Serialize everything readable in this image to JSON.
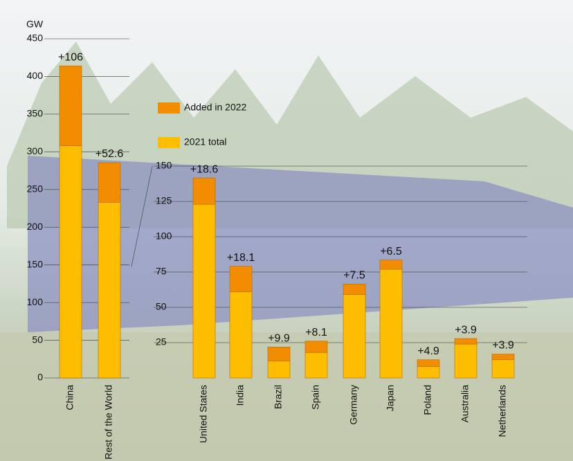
{
  "chart_data": [
    {
      "type": "bar",
      "y_label": "GW",
      "categories": [
        "China",
        "Rest of the World"
      ],
      "series": [
        {
          "name": "2021 total",
          "color": "#fdbd00",
          "values": [
            308,
            233
          ]
        },
        {
          "name": "Added in 2022",
          "color": "#f28c00",
          "values": [
            106,
            52.6
          ],
          "value_labels": [
            "+106",
            "+52.6"
          ]
        }
      ],
      "ylim": [
        0,
        450
      ],
      "yticks": [
        0,
        50,
        100,
        150,
        200,
        250,
        300,
        350,
        400,
        450
      ],
      "grid": true
    },
    {
      "type": "bar",
      "categories": [
        "United States",
        "India",
        "Brazil",
        "Spain",
        "Germany",
        "Japan",
        "Poland",
        "Australia",
        "Netherlands"
      ],
      "series": [
        {
          "color": "#fdbd00",
          "values": [
            123,
            61,
            12,
            18,
            59,
            77,
            8,
            24,
            13
          ]
        },
        {
          "color": "#f28c00",
          "values": [
            18.6,
            18.1,
            9.9,
            8.1,
            7.5,
            6.5,
            4.9,
            3.9,
            3.9
          ],
          "value_labels": [
            "+18.6",
            "+18.1",
            "+9.9",
            "+8.1",
            "+7.5",
            "+6.5",
            "+4.9",
            "+3.9",
            "+3.9"
          ]
        }
      ],
      "ylim": [
        0,
        150
      ],
      "yticks": [
        25,
        50,
        75,
        100,
        125,
        150
      ],
      "grid": true
    }
  ]
}
